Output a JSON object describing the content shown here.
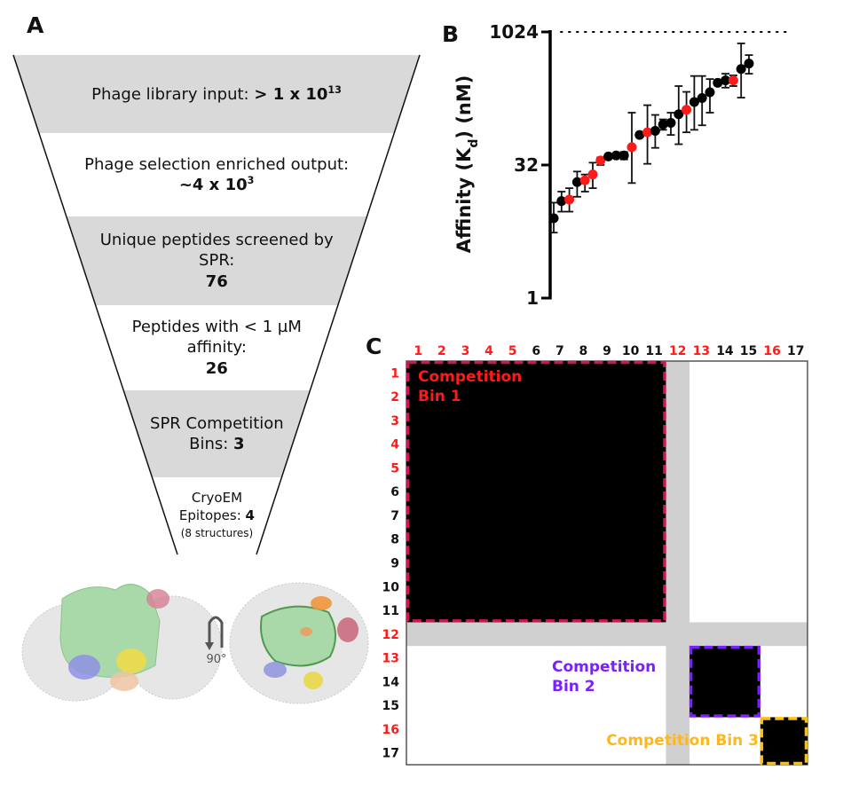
{
  "panels": {
    "a": "A",
    "b": "B",
    "c": "C"
  },
  "funnel": {
    "stages": [
      {
        "label": "Phage library input: ",
        "value": "> 1 x 10",
        "value_sup": "13",
        "shaded": true
      },
      {
        "label": "Phage selection enriched output:",
        "value": "~4 x 10",
        "value_sup": "3",
        "shaded": false
      },
      {
        "label": "Unique peptides screened by SPR:",
        "value": "76",
        "value_sup": "",
        "shaded": true
      },
      {
        "label": "Peptides with < 1 µM affinity:",
        "value": "26",
        "value_sup": "",
        "shaded": false
      },
      {
        "label": "SPR Competition Bins: ",
        "value": "3",
        "value_sup": "",
        "shaded": true
      },
      {
        "label": "CryoEM Epitopes: ",
        "value": "4",
        "value_sup": "",
        "note": "(8 structures)",
        "shaded": false
      }
    ],
    "colors": {
      "shade": "#d9d9d9",
      "line": "#111111"
    }
  },
  "structure": {
    "rotation_label": "90°",
    "epitope_colors": {
      "core": "#9fd39f",
      "shell": "#c8c8c8",
      "pink": "#c8647a",
      "blue": "#8a8fe0",
      "yellow": "#e8d640",
      "peach": "#e8b48c",
      "orange": "#f0963c"
    }
  },
  "chart_data": [
    {
      "type": "scatter",
      "title": "",
      "xlabel": "",
      "ylabel": "Affinity (K_d) (nM)",
      "ylabel_main": "Affinity (K",
      "ylabel_sub": "d",
      "ylabel_end": ") (nM)",
      "yscale": "log2",
      "ylim": [
        1,
        1024
      ],
      "yticks": [
        1,
        32,
        1024
      ],
      "yticklabels": [
        "1",
        "32",
        "1024"
      ],
      "reference_line": {
        "y": 1024,
        "style": "dotted"
      },
      "grid": false,
      "colors": {
        "black": "#000000",
        "red": "#ff1a1a"
      },
      "points": [
        {
          "i": 1,
          "kd": 8,
          "lo": 5.5,
          "hi": 12,
          "color": "black"
        },
        {
          "i": 2,
          "kd": 12.5,
          "lo": 9.5,
          "hi": 16,
          "color": "black"
        },
        {
          "i": 3,
          "kd": 13,
          "lo": 9.5,
          "hi": 17.5,
          "color": "red"
        },
        {
          "i": 4,
          "kd": 20.5,
          "lo": 14,
          "hi": 27,
          "color": "black"
        },
        {
          "i": 5,
          "kd": 21.5,
          "lo": 16,
          "hi": 25,
          "color": "red"
        },
        {
          "i": 6,
          "kd": 25,
          "lo": 17.5,
          "hi": 34,
          "color": "red"
        },
        {
          "i": 7,
          "kd": 36,
          "lo": 32,
          "hi": 39,
          "color": "red"
        },
        {
          "i": 8,
          "kd": 40,
          "lo": 38,
          "hi": 42,
          "color": "black"
        },
        {
          "i": 9,
          "kd": 41,
          "lo": 39,
          "hi": 43,
          "color": "black"
        },
        {
          "i": 10,
          "kd": 41,
          "lo": 37,
          "hi": 45,
          "color": "black"
        },
        {
          "i": 11,
          "kd": 51,
          "lo": 20,
          "hi": 125,
          "color": "red"
        },
        {
          "i": 12,
          "kd": 70,
          "lo": 66,
          "hi": 74,
          "color": "black"
        },
        {
          "i": 13,
          "kd": 75,
          "lo": 33,
          "hi": 152,
          "color": "red"
        },
        {
          "i": 14,
          "kd": 78,
          "lo": 50,
          "hi": 118,
          "color": "black"
        },
        {
          "i": 15,
          "kd": 92,
          "lo": 80,
          "hi": 105,
          "color": "black"
        },
        {
          "i": 16,
          "kd": 96,
          "lo": 70,
          "hi": 125,
          "color": "black"
        },
        {
          "i": 17,
          "kd": 120,
          "lo": 55,
          "hi": 250,
          "color": "black"
        },
        {
          "i": 18,
          "kd": 135,
          "lo": 75,
          "hi": 215,
          "color": "red"
        },
        {
          "i": 19,
          "kd": 165,
          "lo": 80,
          "hi": 325,
          "color": "black"
        },
        {
          "i": 20,
          "kd": 183,
          "lo": 90,
          "hi": 325,
          "color": "black"
        },
        {
          "i": 21,
          "kd": 213,
          "lo": 125,
          "hi": 300,
          "color": "black"
        },
        {
          "i": 22,
          "kd": 272,
          "lo": 255,
          "hi": 290,
          "color": "black"
        },
        {
          "i": 23,
          "kd": 290,
          "lo": 240,
          "hi": 345,
          "color": "black"
        },
        {
          "i": 24,
          "kd": 290,
          "lo": 250,
          "hi": 330,
          "color": "red"
        },
        {
          "i": 25,
          "kd": 390,
          "lo": 185,
          "hi": 760,
          "color": "black"
        },
        {
          "i": 26,
          "kd": 450,
          "lo": 345,
          "hi": 560,
          "color": "black"
        }
      ]
    },
    {
      "type": "heatmap",
      "title": "",
      "labels": [
        "1",
        "2",
        "3",
        "4",
        "5",
        "6",
        "7",
        "8",
        "9",
        "10",
        "11",
        "12",
        "13",
        "14",
        "15",
        "16",
        "17"
      ],
      "label_colors": [
        "red",
        "red",
        "red",
        "red",
        "red",
        "black",
        "black",
        "black",
        "black",
        "black",
        "black",
        "red",
        "red",
        "black",
        "black",
        "red",
        "black"
      ],
      "gray_index": 12,
      "bins": [
        {
          "name": "Competition Bin 1",
          "line1": "Competition",
          "line2": "Bin 1",
          "from": 1,
          "to": 11,
          "color": "#c8185a",
          "text_color": "#ff1a1a"
        },
        {
          "name": "Competition Bin 2",
          "line1": "Competition",
          "line2": "Bin 2",
          "from": 13,
          "to": 15,
          "color": "#7a1fff",
          "text_color": "#7a1fff"
        },
        {
          "name": "Competition Bin 3",
          "line1": "Competition Bin 3",
          "line2": "",
          "from": 16,
          "to": 17,
          "color": "#ffc000",
          "text_color": "#ffb81c"
        }
      ],
      "colors": {
        "filled": "#000000",
        "gray": "#d0d0d0",
        "empty": "#ffffff",
        "label_red": "#ff1a1a",
        "label_black": "#111111"
      }
    }
  ]
}
